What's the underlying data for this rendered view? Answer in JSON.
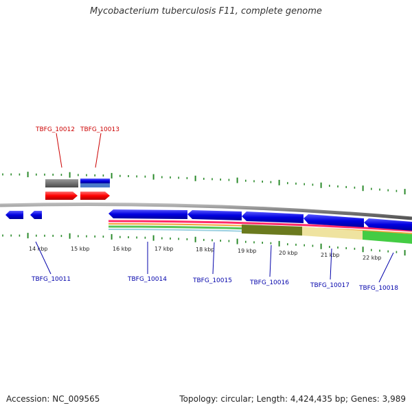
{
  "title": "Mycobacterium tuberculosis F11, complete genome",
  "footer": {
    "accession": "Accession: NC_009565",
    "summary": "Topology: circular; Length: 4,424,435 bp; Genes: 3,989"
  },
  "scale_labels": [
    "14 kbp",
    "15 kbp",
    "16 kbp",
    "17 kbp",
    "18 kbp",
    "19 kbp",
    "20 kbp",
    "21 kbp",
    "22 kbp"
  ],
  "gene_labels_top": [
    {
      "text": "TBFG_10012",
      "color": "#cc0000"
    },
    {
      "text": "TBFG_10013",
      "color": "#cc0000"
    }
  ],
  "gene_labels_bottom": [
    {
      "text": "TBFG_10011",
      "color": "#0000aa"
    },
    {
      "text": "TBFG_10014",
      "color": "#0000aa"
    },
    {
      "text": "TBFG_10015",
      "color": "#0000aa"
    },
    {
      "text": "TBFG_10016",
      "color": "#0000aa"
    },
    {
      "text": "TBFG_10017",
      "color": "#0000aa"
    },
    {
      "text": "TBFG_10018",
      "color": "#0000aa"
    }
  ],
  "colors": {
    "backbone": "#808080",
    "tick": "#2a8a2a",
    "forward_gene": "#ff0000",
    "reverse_gene": "#0000ee",
    "gc_skew_olive": "#6b7a1e",
    "gc_skew_khaki": "#efe3a0",
    "gc_skew_green": "#44cc44"
  }
}
